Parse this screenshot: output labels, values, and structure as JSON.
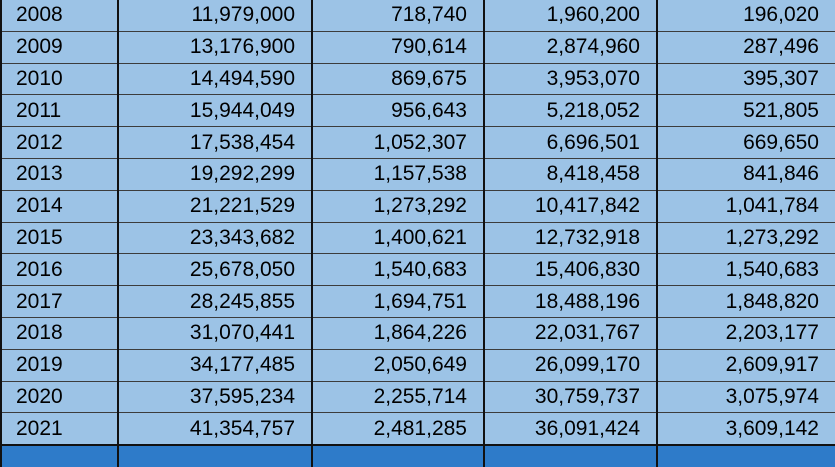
{
  "rows": [
    {
      "year": "2008",
      "col_a": "11,979,000",
      "col_b": "718,740",
      "col_c": "1,960,200",
      "col_d": "196,020"
    },
    {
      "year": "2009",
      "col_a": "13,176,900",
      "col_b": "790,614",
      "col_c": "2,874,960",
      "col_d": "287,496"
    },
    {
      "year": "2010",
      "col_a": "14,494,590",
      "col_b": "869,675",
      "col_c": "3,953,070",
      "col_d": "395,307"
    },
    {
      "year": "2011",
      "col_a": "15,944,049",
      "col_b": "956,643",
      "col_c": "5,218,052",
      "col_d": "521,805"
    },
    {
      "year": "2012",
      "col_a": "17,538,454",
      "col_b": "1,052,307",
      "col_c": "6,696,501",
      "col_d": "669,650"
    },
    {
      "year": "2013",
      "col_a": "19,292,299",
      "col_b": "1,157,538",
      "col_c": "8,418,458",
      "col_d": "841,846"
    },
    {
      "year": "2014",
      "col_a": "21,221,529",
      "col_b": "1,273,292",
      "col_c": "10,417,842",
      "col_d": "1,041,784"
    },
    {
      "year": "2015",
      "col_a": "23,343,682",
      "col_b": "1,400,621",
      "col_c": "12,732,918",
      "col_d": "1,273,292"
    },
    {
      "year": "2016",
      "col_a": "25,678,050",
      "col_b": "1,540,683",
      "col_c": "15,406,830",
      "col_d": "1,540,683"
    },
    {
      "year": "2017",
      "col_a": "28,245,855",
      "col_b": "1,694,751",
      "col_c": "18,488,196",
      "col_d": "1,848,820"
    },
    {
      "year": "2018",
      "col_a": "31,070,441",
      "col_b": "1,864,226",
      "col_c": "22,031,767",
      "col_d": "2,203,177"
    },
    {
      "year": "2019",
      "col_a": "34,177,485",
      "col_b": "2,050,649",
      "col_c": "26,099,170",
      "col_d": "2,609,917"
    },
    {
      "year": "2020",
      "col_a": "37,595,234",
      "col_b": "2,255,714",
      "col_c": "30,759,737",
      "col_d": "3,075,974"
    },
    {
      "year": "2021",
      "col_a": "41,354,757",
      "col_b": "2,481,285",
      "col_c": "36,091,424",
      "col_d": "3,609,142"
    }
  ],
  "colors": {
    "cell_fill": "#9cc3e6",
    "total_fill": "#2e7bc9",
    "grid_line": "#111111"
  }
}
